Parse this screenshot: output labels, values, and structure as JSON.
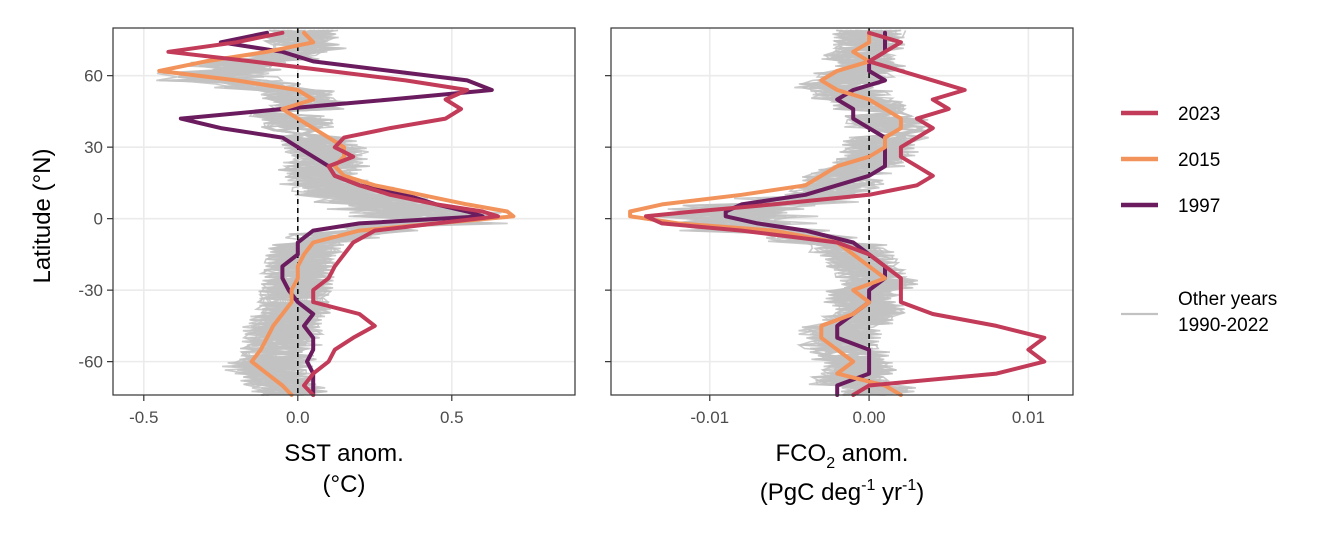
{
  "colors": {
    "y2023": "#c23b58",
    "y2015": "#f2935c",
    "y1997": "#6b1c5e",
    "other": "#c2c2c2",
    "grid": "#ebebeb",
    "zero_line": "#000000",
    "panel_border": "#333333"
  },
  "legend": {
    "items": [
      {
        "key": "y2023",
        "label": "2023"
      },
      {
        "key": "y2015",
        "label": "2015"
      },
      {
        "key": "y1997",
        "label": "1997"
      }
    ],
    "other_label_line1": "Other years",
    "other_label_line2": "1990-2022",
    "placement": "right"
  },
  "chart_data": [
    {
      "type": "line",
      "orientation": "profile (x = anomaly, y = latitude)",
      "ylabel": "Latitude (°N)",
      "xlabel_line1": "SST anom.",
      "xlabel_line2": "(°C)",
      "xlim": [
        -0.6,
        0.9
      ],
      "ylim": [
        -74,
        80
      ],
      "x_ticks": [
        -0.5,
        0.0,
        0.5
      ],
      "x_tick_labels": [
        "-0.5",
        "0.0",
        "0.5"
      ],
      "y_ticks": [
        60,
        30,
        0,
        -30,
        -60
      ],
      "y_tick_labels": [
        "60",
        "30",
        "0",
        "-30",
        "-60"
      ],
      "grid": true,
      "zero_line": "dashed",
      "series": [
        {
          "name": "2023",
          "key": "y2023",
          "lat": [
            78,
            74,
            70,
            66,
            62,
            58,
            54,
            50,
            46,
            42,
            38,
            34,
            30,
            26,
            22,
            18,
            14,
            10,
            6,
            3,
            1,
            -2,
            -5,
            -10,
            -15,
            -20,
            -25,
            -30,
            -35,
            -40,
            -45,
            -50,
            -55,
            -60,
            -65,
            -70,
            -74
          ],
          "values": [
            -0.05,
            -0.2,
            -0.42,
            -0.15,
            0.1,
            0.35,
            0.55,
            0.48,
            0.53,
            0.48,
            0.3,
            0.15,
            0.12,
            0.18,
            0.1,
            0.12,
            0.2,
            0.3,
            0.45,
            0.6,
            0.65,
            0.45,
            0.25,
            0.18,
            0.15,
            0.12,
            0.1,
            0.05,
            0.05,
            0.2,
            0.25,
            0.18,
            0.12,
            0.1,
            0.05,
            0.02,
            0.05
          ]
        },
        {
          "name": "2015",
          "key": "y2015",
          "lat": [
            78,
            74,
            70,
            66,
            62,
            58,
            54,
            50,
            46,
            42,
            38,
            34,
            30,
            26,
            22,
            18,
            14,
            10,
            6,
            3,
            1,
            -2,
            -5,
            -10,
            -15,
            -20,
            -25,
            -30,
            -35,
            -40,
            -45,
            -50,
            -55,
            -60,
            -65,
            -70,
            -74
          ],
          "values": [
            0.02,
            0.05,
            -0.1,
            -0.3,
            -0.45,
            -0.2,
            0.0,
            0.05,
            -0.05,
            0.0,
            0.05,
            0.1,
            0.15,
            0.15,
            0.12,
            0.15,
            0.25,
            0.4,
            0.55,
            0.68,
            0.7,
            0.45,
            0.2,
            0.05,
            0.02,
            0.0,
            0.0,
            -0.02,
            -0.02,
            -0.05,
            -0.08,
            -0.1,
            -0.12,
            -0.15,
            -0.1,
            -0.05,
            -0.02
          ]
        },
        {
          "name": "1997",
          "key": "y1997",
          "lat": [
            78,
            74,
            70,
            66,
            62,
            58,
            54,
            50,
            46,
            42,
            38,
            34,
            30,
            26,
            22,
            18,
            14,
            10,
            6,
            3,
            1,
            -2,
            -5,
            -10,
            -15,
            -20,
            -25,
            -30,
            -35,
            -40,
            -45,
            -50,
            -55,
            -60,
            -65,
            -70,
            -74
          ],
          "values": [
            -0.1,
            -0.25,
            -0.05,
            0.05,
            0.3,
            0.55,
            0.63,
            0.3,
            -0.05,
            -0.38,
            -0.25,
            -0.05,
            0.0,
            0.05,
            0.1,
            0.12,
            0.2,
            0.35,
            0.45,
            0.55,
            0.6,
            0.2,
            0.05,
            0.0,
            0.0,
            -0.05,
            -0.05,
            -0.03,
            0.0,
            0.05,
            0.02,
            0.05,
            0.05,
            0.03,
            0.05,
            0.05,
            0.05
          ]
        }
      ]
    },
    {
      "type": "line",
      "orientation": "profile (x = anomaly, y = latitude)",
      "ylabel": "",
      "xlabel_main": "FCO",
      "xlabel_sub": "2",
      "xlabel_rest": " anom.",
      "xlabel_line2_a": "(PgC deg",
      "xlabel_line2_sup1": "-1",
      "xlabel_line2_b": " yr",
      "xlabel_line2_sup2": "-1",
      "xlabel_line2_c": ")",
      "xlim": [
        -0.0162,
        0.0128
      ],
      "ylim": [
        -74,
        80
      ],
      "x_ticks": [
        -0.01,
        0.0,
        0.01
      ],
      "x_tick_labels": [
        "-0.01",
        "0.00",
        "0.01"
      ],
      "y_ticks": [
        60,
        30,
        0,
        -30,
        -60
      ],
      "grid": true,
      "zero_line": "dashed",
      "series": [
        {
          "name": "2023",
          "key": "y2023",
          "lat": [
            78,
            74,
            70,
            66,
            62,
            58,
            54,
            50,
            46,
            42,
            38,
            34,
            30,
            26,
            22,
            18,
            14,
            10,
            6,
            3,
            1,
            -2,
            -5,
            -10,
            -15,
            -20,
            -25,
            -30,
            -35,
            -40,
            -45,
            -50,
            -55,
            -60,
            -65,
            -70,
            -74
          ],
          "values": [
            0.0,
            0.002,
            0.001,
            0.0,
            0.002,
            0.004,
            0.006,
            0.004,
            0.005,
            0.003,
            0.004,
            0.003,
            0.002,
            0.002,
            0.003,
            0.004,
            0.003,
            0.0,
            -0.006,
            -0.011,
            -0.014,
            -0.013,
            -0.008,
            -0.002,
            0.0,
            0.001,
            0.002,
            0.002,
            0.002,
            0.004,
            0.008,
            0.011,
            0.01,
            0.011,
            0.008,
            0.0,
            -0.001
          ]
        },
        {
          "name": "2015",
          "key": "y2015",
          "lat": [
            78,
            74,
            70,
            66,
            62,
            58,
            54,
            50,
            46,
            42,
            38,
            34,
            30,
            26,
            22,
            18,
            14,
            10,
            6,
            3,
            1,
            -2,
            -5,
            -10,
            -15,
            -20,
            -25,
            -30,
            -35,
            -40,
            -45,
            -50,
            -55,
            -60,
            -65,
            -70,
            -74
          ],
          "values": [
            0.0,
            0.0,
            -0.001,
            0.0,
            -0.002,
            -0.003,
            -0.002,
            0.0,
            0.001,
            0.002,
            0.002,
            0.001,
            0.001,
            0.0,
            -0.002,
            -0.003,
            -0.004,
            -0.008,
            -0.013,
            -0.015,
            -0.015,
            -0.012,
            -0.006,
            -0.002,
            -0.001,
            0.0,
            0.001,
            -0.001,
            0.0,
            -0.001,
            -0.003,
            -0.003,
            -0.002,
            -0.001,
            -0.002,
            0.001,
            0.002
          ]
        },
        {
          "name": "1997",
          "key": "y1997",
          "lat": [
            78,
            74,
            70,
            66,
            62,
            58,
            54,
            50,
            46,
            42,
            38,
            34,
            30,
            26,
            22,
            18,
            14,
            10,
            6,
            3,
            1,
            -2,
            -5,
            -10,
            -15,
            -20,
            -25,
            -30,
            -35,
            -40,
            -45,
            -50,
            -55,
            -60,
            -65,
            -70,
            -74
          ],
          "values": [
            0.001,
            0.001,
            0.001,
            0.0,
            0.0,
            0.001,
            -0.001,
            -0.002,
            -0.001,
            -0.001,
            0.0,
            0.001,
            0.001,
            0.001,
            0.001,
            0.0,
            -0.002,
            -0.004,
            -0.008,
            -0.009,
            -0.009,
            -0.007,
            -0.004,
            -0.001,
            0.0,
            0.001,
            0.001,
            0.0,
            0.0,
            -0.001,
            -0.002,
            -0.002,
            0.0,
            0.0,
            0.0,
            -0.002,
            -0.002
          ]
        }
      ]
    }
  ]
}
